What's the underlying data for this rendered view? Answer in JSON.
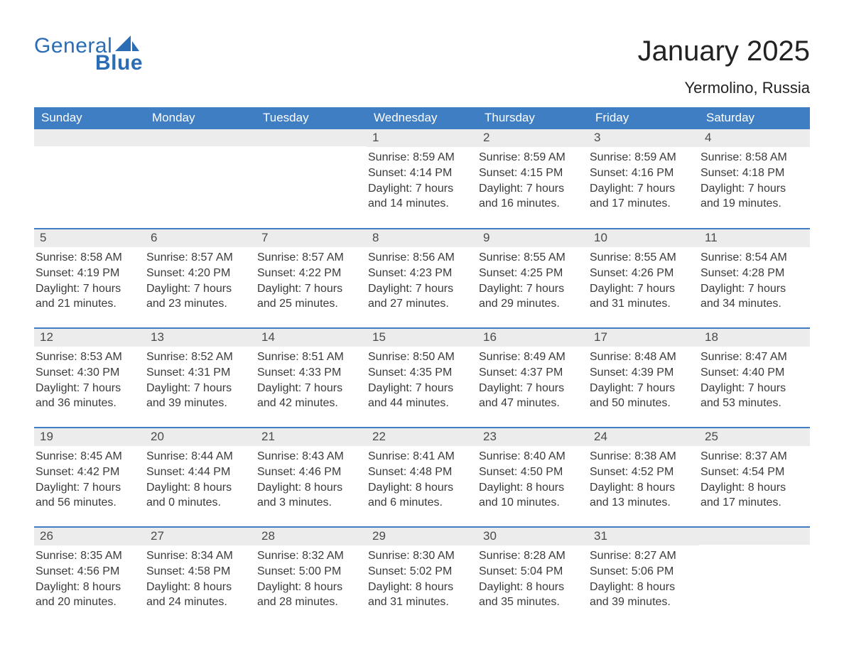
{
  "brand": {
    "word1": "General",
    "word2": "Blue",
    "color": "#2a6db5"
  },
  "title": "January 2025",
  "location": "Yermolino, Russia",
  "colors": {
    "header_bg": "#3f7ec2",
    "header_text": "#ffffff",
    "daynum_bg": "#ececec",
    "text": "#3a3a3a",
    "border": "#3f7ec2",
    "page_bg": "#ffffff"
  },
  "fonts": {
    "title_size": 40,
    "location_size": 22,
    "th_size": 17,
    "cell_size": 16
  },
  "weekdays": [
    "Sunday",
    "Monday",
    "Tuesday",
    "Wednesday",
    "Thursday",
    "Friday",
    "Saturday"
  ],
  "weeks": [
    [
      null,
      null,
      null,
      {
        "n": "1",
        "sunrise": "8:59 AM",
        "sunset": "4:14 PM",
        "dl1": "7 hours",
        "dl2": "and 14 minutes."
      },
      {
        "n": "2",
        "sunrise": "8:59 AM",
        "sunset": "4:15 PM",
        "dl1": "7 hours",
        "dl2": "and 16 minutes."
      },
      {
        "n": "3",
        "sunrise": "8:59 AM",
        "sunset": "4:16 PM",
        "dl1": "7 hours",
        "dl2": "and 17 minutes."
      },
      {
        "n": "4",
        "sunrise": "8:58 AM",
        "sunset": "4:18 PM",
        "dl1": "7 hours",
        "dl2": "and 19 minutes."
      }
    ],
    [
      {
        "n": "5",
        "sunrise": "8:58 AM",
        "sunset": "4:19 PM",
        "dl1": "7 hours",
        "dl2": "and 21 minutes."
      },
      {
        "n": "6",
        "sunrise": "8:57 AM",
        "sunset": "4:20 PM",
        "dl1": "7 hours",
        "dl2": "and 23 minutes."
      },
      {
        "n": "7",
        "sunrise": "8:57 AM",
        "sunset": "4:22 PM",
        "dl1": "7 hours",
        "dl2": "and 25 minutes."
      },
      {
        "n": "8",
        "sunrise": "8:56 AM",
        "sunset": "4:23 PM",
        "dl1": "7 hours",
        "dl2": "and 27 minutes."
      },
      {
        "n": "9",
        "sunrise": "8:55 AM",
        "sunset": "4:25 PM",
        "dl1": "7 hours",
        "dl2": "and 29 minutes."
      },
      {
        "n": "10",
        "sunrise": "8:55 AM",
        "sunset": "4:26 PM",
        "dl1": "7 hours",
        "dl2": "and 31 minutes."
      },
      {
        "n": "11",
        "sunrise": "8:54 AM",
        "sunset": "4:28 PM",
        "dl1": "7 hours",
        "dl2": "and 34 minutes."
      }
    ],
    [
      {
        "n": "12",
        "sunrise": "8:53 AM",
        "sunset": "4:30 PM",
        "dl1": "7 hours",
        "dl2": "and 36 minutes."
      },
      {
        "n": "13",
        "sunrise": "8:52 AM",
        "sunset": "4:31 PM",
        "dl1": "7 hours",
        "dl2": "and 39 minutes."
      },
      {
        "n": "14",
        "sunrise": "8:51 AM",
        "sunset": "4:33 PM",
        "dl1": "7 hours",
        "dl2": "and 42 minutes."
      },
      {
        "n": "15",
        "sunrise": "8:50 AM",
        "sunset": "4:35 PM",
        "dl1": "7 hours",
        "dl2": "and 44 minutes."
      },
      {
        "n": "16",
        "sunrise": "8:49 AM",
        "sunset": "4:37 PM",
        "dl1": "7 hours",
        "dl2": "and 47 minutes."
      },
      {
        "n": "17",
        "sunrise": "8:48 AM",
        "sunset": "4:39 PM",
        "dl1": "7 hours",
        "dl2": "and 50 minutes."
      },
      {
        "n": "18",
        "sunrise": "8:47 AM",
        "sunset": "4:40 PM",
        "dl1": "7 hours",
        "dl2": "and 53 minutes."
      }
    ],
    [
      {
        "n": "19",
        "sunrise": "8:45 AM",
        "sunset": "4:42 PM",
        "dl1": "7 hours",
        "dl2": "and 56 minutes."
      },
      {
        "n": "20",
        "sunrise": "8:44 AM",
        "sunset": "4:44 PM",
        "dl1": "8 hours",
        "dl2": "and 0 minutes."
      },
      {
        "n": "21",
        "sunrise": "8:43 AM",
        "sunset": "4:46 PM",
        "dl1": "8 hours",
        "dl2": "and 3 minutes."
      },
      {
        "n": "22",
        "sunrise": "8:41 AM",
        "sunset": "4:48 PM",
        "dl1": "8 hours",
        "dl2": "and 6 minutes."
      },
      {
        "n": "23",
        "sunrise": "8:40 AM",
        "sunset": "4:50 PM",
        "dl1": "8 hours",
        "dl2": "and 10 minutes."
      },
      {
        "n": "24",
        "sunrise": "8:38 AM",
        "sunset": "4:52 PM",
        "dl1": "8 hours",
        "dl2": "and 13 minutes."
      },
      {
        "n": "25",
        "sunrise": "8:37 AM",
        "sunset": "4:54 PM",
        "dl1": "8 hours",
        "dl2": "and 17 minutes."
      }
    ],
    [
      {
        "n": "26",
        "sunrise": "8:35 AM",
        "sunset": "4:56 PM",
        "dl1": "8 hours",
        "dl2": "and 20 minutes."
      },
      {
        "n": "27",
        "sunrise": "8:34 AM",
        "sunset": "4:58 PM",
        "dl1": "8 hours",
        "dl2": "and 24 minutes."
      },
      {
        "n": "28",
        "sunrise": "8:32 AM",
        "sunset": "5:00 PM",
        "dl1": "8 hours",
        "dl2": "and 28 minutes."
      },
      {
        "n": "29",
        "sunrise": "8:30 AM",
        "sunset": "5:02 PM",
        "dl1": "8 hours",
        "dl2": "and 31 minutes."
      },
      {
        "n": "30",
        "sunrise": "8:28 AM",
        "sunset": "5:04 PM",
        "dl1": "8 hours",
        "dl2": "and 35 minutes."
      },
      {
        "n": "31",
        "sunrise": "8:27 AM",
        "sunset": "5:06 PM",
        "dl1": "8 hours",
        "dl2": "and 39 minutes."
      },
      null
    ]
  ],
  "labels": {
    "sunrise": "Sunrise: ",
    "sunset": "Sunset: ",
    "daylight": "Daylight: "
  }
}
